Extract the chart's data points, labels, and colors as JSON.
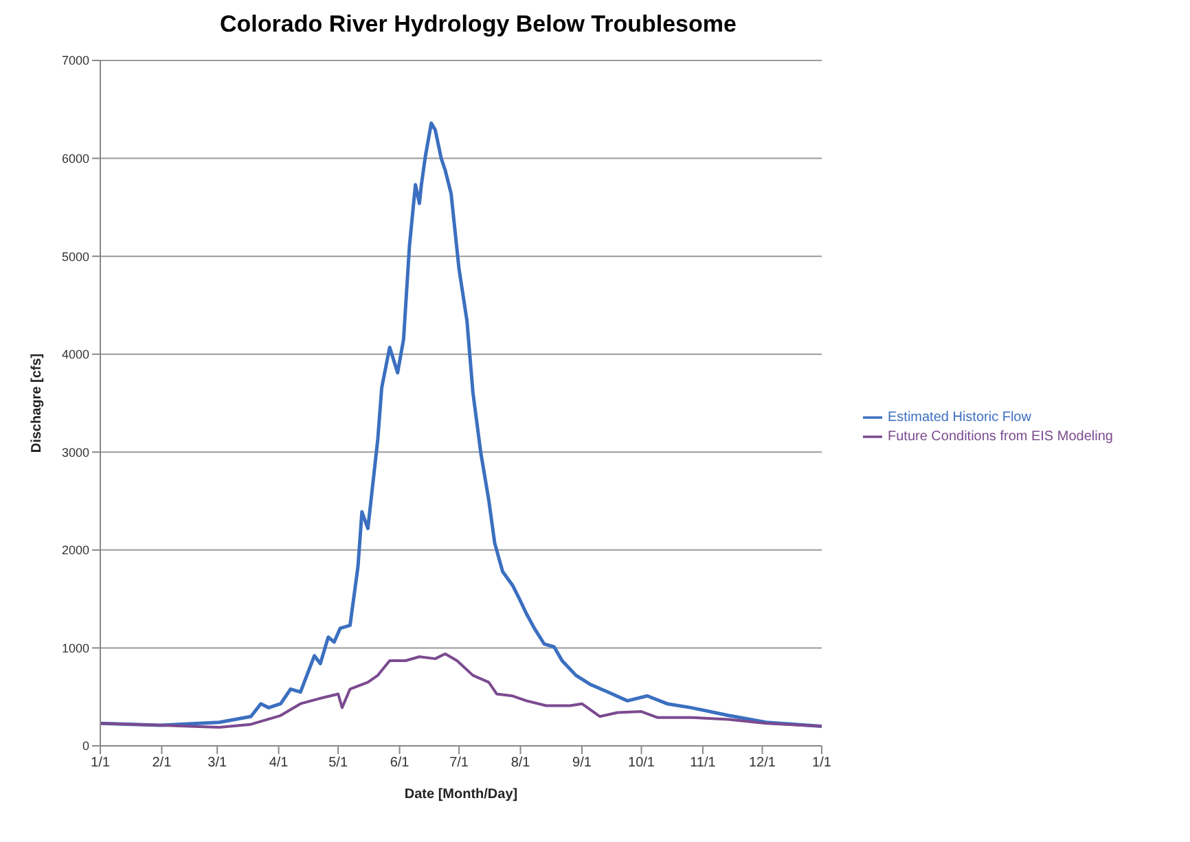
{
  "chart_data": {
    "type": "line",
    "title": "Colorado River Hydrology Below Troublesome",
    "xlabel": "Date [Month/Day]",
    "ylabel": "Dischagre [cfs]",
    "xlim": [
      "--01-01",
      "--12-31"
    ],
    "xticks": [
      {
        "value": "--01-01",
        "label": "1/1"
      },
      {
        "value": "--02-01",
        "label": "2/1"
      },
      {
        "value": "--03-01",
        "label": "3/1"
      },
      {
        "value": "--04-01",
        "label": "4/1"
      },
      {
        "value": "--05-01",
        "label": "5/1"
      },
      {
        "value": "--06-01",
        "label": "6/1"
      },
      {
        "value": "--07-01",
        "label": "7/1"
      },
      {
        "value": "--08-01",
        "label": "8/1"
      },
      {
        "value": "--09-01",
        "label": "9/1"
      },
      {
        "value": "--10-01",
        "label": "10/1"
      },
      {
        "value": "--11-01",
        "label": "11/1"
      },
      {
        "value": "--12-01",
        "label": "12/1"
      },
      {
        "value": "--12-31",
        "label": "1/1"
      }
    ],
    "ylim": [
      0,
      7000
    ],
    "yticks": [
      0,
      1000,
      2000,
      3000,
      4000,
      5000,
      6000,
      7000
    ],
    "grid": "y",
    "legend": "right",
    "marker": "none",
    "line_style": "solid",
    "series": [
      {
        "name": "Estimated Historic Flow",
        "color": "#3b6fc0",
        "x": [
          "--01-01",
          "--01-31",
          "--03-02",
          "--03-18",
          "--03-23",
          "--03-27",
          "--04-02",
          "--04-07",
          "--04-12",
          "--04-19",
          "--04-22",
          "--04-26",
          "--04-29",
          "--05-02",
          "--05-07",
          "--05-11",
          "--05-13",
          "--05-16",
          "--05-21",
          "--05-23",
          "--05-27",
          "--05-31",
          "--06-03",
          "--06-06",
          "--06-09",
          "--06-11",
          "--06-12",
          "--06-14",
          "--06-17",
          "--06-19",
          "--06-22",
          "--06-24",
          "--06-27",
          "--07-01",
          "--07-05",
          "--07-08",
          "--07-12",
          "--07-16",
          "--07-19",
          "--07-23",
          "--07-28",
          "--07-31",
          "--08-04",
          "--08-08",
          "--08-13",
          "--08-18",
          "--08-22",
          "--08-29",
          "--09-05",
          "--09-14",
          "--09-24",
          "--10-04",
          "--10-14",
          "--10-26",
          "--11-14",
          "--12-03",
          "--12-31"
        ],
        "values": [
          230,
          210,
          240,
          300,
          430,
          390,
          430,
          580,
          550,
          920,
          840,
          1110,
          1060,
          1200,
          1230,
          1830,
          2390,
          2220,
          3130,
          3660,
          4070,
          3810,
          4150,
          5110,
          5730,
          5540,
          5730,
          6020,
          6360,
          6290,
          6000,
          5880,
          5640,
          4870,
          4340,
          3610,
          2990,
          2510,
          2070,
          1780,
          1640,
          1520,
          1350,
          1200,
          1040,
          1010,
          870,
          720,
          630,
          550,
          460,
          510,
          430,
          390,
          310,
          240,
          200
        ]
      },
      {
        "name": "Future Conditions from EIS Modeling",
        "color": "#7b4a8f",
        "x": [
          "--01-01",
          "--01-31",
          "--03-02",
          "--03-18",
          "--04-02",
          "--04-12",
          "--04-21",
          "--05-01",
          "--05-03",
          "--05-07",
          "--05-16",
          "--05-21",
          "--05-27",
          "--06-04",
          "--06-11",
          "--06-19",
          "--06-24",
          "--06-30",
          "--07-08",
          "--07-16",
          "--07-20",
          "--07-28",
          "--08-04",
          "--08-14",
          "--08-26",
          "--09-01",
          "--09-10",
          "--09-19",
          "--10-01",
          "--10-09",
          "--10-26",
          "--11-14",
          "--12-03",
          "--12-31"
        ],
        "values": [
          230,
          210,
          190,
          220,
          310,
          430,
          480,
          530,
          390,
          580,
          650,
          720,
          870,
          870,
          910,
          890,
          940,
          870,
          720,
          650,
          530,
          510,
          460,
          410,
          410,
          430,
          300,
          340,
          350,
          290,
          290,
          270,
          230,
          200
        ]
      }
    ]
  }
}
